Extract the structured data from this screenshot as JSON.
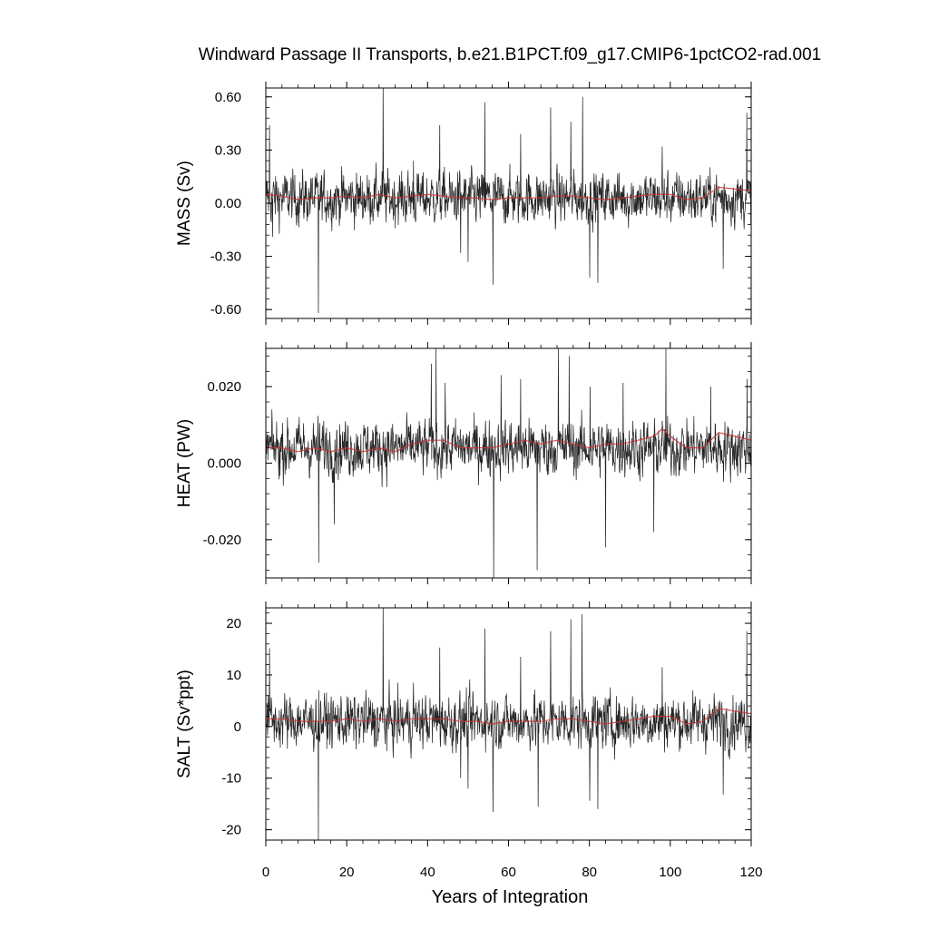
{
  "figure": {
    "title": "Windward Passage II Transports, b.e21.B1PCT.f09_g17.CMIP6-1pctCO2-rad.001",
    "xlabel": "Years of Integration"
  },
  "chart_data": [
    {
      "type": "line",
      "panel": "top",
      "ylabel": "MASS (Sv)",
      "xlim": [
        0,
        120
      ],
      "ylim": [
        -0.65,
        0.65
      ],
      "x_ticks": [
        0,
        20,
        40,
        60,
        80,
        100,
        120
      ],
      "y_ticks": [
        -0.6,
        -0.3,
        0.0,
        0.3,
        0.6
      ],
      "y_tick_labels": [
        "-0.60",
        "-0.30",
        "0.00",
        "0.30",
        "0.60"
      ],
      "series": [
        {
          "role": "monthly",
          "color": "#000000",
          "baseline": 0.03,
          "noise_amplitude": 0.09,
          "spikes": [
            [
              0.9,
              0.44
            ],
            [
              1.7,
              -0.19
            ],
            [
              13,
              -0.62
            ],
            [
              29,
              0.65
            ],
            [
              36.5,
              0.24
            ],
            [
              43,
              0.44
            ],
            [
              48.2,
              -0.28
            ],
            [
              54.2,
              0.57
            ],
            [
              56.2,
              -0.46
            ],
            [
              63,
              0.39
            ],
            [
              70.4,
              0.54
            ],
            [
              78.3,
              0.6
            ],
            [
              80.1,
              -0.42
            ],
            [
              82.1,
              -0.45
            ],
            [
              98,
              0.32
            ],
            [
              113.1,
              -0.37
            ],
            [
              118.9,
              0.51
            ],
            [
              75.4,
              0.46
            ],
            [
              50,
              -0.33
            ]
          ]
        },
        {
          "role": "annual-mean",
          "color": "#cc3333",
          "points": [
            [
              0,
              0.05
            ],
            [
              4,
              0.04
            ],
            [
              8,
              0.02
            ],
            [
              12,
              0.03
            ],
            [
              16,
              0.03
            ],
            [
              20,
              0.04
            ],
            [
              24,
              0.03
            ],
            [
              28,
              0.05
            ],
            [
              32,
              0.03
            ],
            [
              36,
              0.04
            ],
            [
              40,
              0.05
            ],
            [
              44,
              0.04
            ],
            [
              48,
              0.03
            ],
            [
              52,
              0.03
            ],
            [
              56,
              0.02
            ],
            [
              60,
              0.03
            ],
            [
              64,
              0.03
            ],
            [
              68,
              0.03
            ],
            [
              72,
              0.04
            ],
            [
              76,
              0.04
            ],
            [
              80,
              0.03
            ],
            [
              84,
              0.02
            ],
            [
              88,
              0.03
            ],
            [
              92,
              0.04
            ],
            [
              96,
              0.05
            ],
            [
              100,
              0.05
            ],
            [
              104,
              0.02
            ],
            [
              108,
              0.03
            ],
            [
              112,
              0.09
            ],
            [
              116,
              0.08
            ],
            [
              120,
              0.07
            ]
          ]
        }
      ]
    },
    {
      "type": "line",
      "panel": "middle",
      "ylabel": "HEAT (PW)",
      "xlim": [
        0,
        120
      ],
      "ylim": [
        -0.03,
        0.03
      ],
      "x_ticks": [
        0,
        20,
        40,
        60,
        80,
        100,
        120
      ],
      "y_ticks": [
        -0.02,
        0.0,
        0.02
      ],
      "y_tick_labels": [
        "-0.020",
        "0.000",
        "0.020"
      ],
      "series": [
        {
          "role": "monthly",
          "color": "#000000",
          "baseline": 0.004,
          "noise_amplitude": 0.0045,
          "spikes": [
            [
              13.1,
              0.03
            ],
            [
              13.1,
              -0.026
            ],
            [
              16.9,
              -0.016
            ],
            [
              42.1,
              0.03
            ],
            [
              44.3,
              0.021
            ],
            [
              56.3,
              -0.03
            ],
            [
              58.2,
              0.023
            ],
            [
              63,
              0.022
            ],
            [
              67.1,
              -0.028
            ],
            [
              72.3,
              0.03
            ],
            [
              75,
              0.028
            ],
            [
              80.2,
              0.02
            ],
            [
              84,
              -0.022
            ],
            [
              88.3,
              0.021
            ],
            [
              95.9,
              -0.018
            ],
            [
              98.9,
              0.03
            ],
            [
              110,
              0.02
            ],
            [
              119,
              0.022
            ],
            [
              120,
              0.016
            ],
            [
              40.9,
              0.026
            ]
          ]
        },
        {
          "role": "annual-mean",
          "color": "#cc3333",
          "points": [
            [
              0,
              0.004
            ],
            [
              4,
              0.004
            ],
            [
              8,
              0.003
            ],
            [
              12,
              0.004
            ],
            [
              16,
              0.003
            ],
            [
              20,
              0.004
            ],
            [
              24,
              0.003
            ],
            [
              28,
              0.004
            ],
            [
              32,
              0.003
            ],
            [
              36,
              0.005
            ],
            [
              40,
              0.006
            ],
            [
              44,
              0.006
            ],
            [
              48,
              0.004
            ],
            [
              52,
              0.004
            ],
            [
              56,
              0.004
            ],
            [
              60,
              0.005
            ],
            [
              64,
              0.006
            ],
            [
              68,
              0.005
            ],
            [
              72,
              0.006
            ],
            [
              76,
              0.005
            ],
            [
              80,
              0.004
            ],
            [
              84,
              0.005
            ],
            [
              88,
              0.005
            ],
            [
              92,
              0.006
            ],
            [
              96,
              0.007
            ],
            [
              98,
              0.009
            ],
            [
              100,
              0.007
            ],
            [
              104,
              0.004
            ],
            [
              108,
              0.004
            ],
            [
              112,
              0.008
            ],
            [
              116,
              0.007
            ],
            [
              120,
              0.006
            ]
          ]
        }
      ]
    },
    {
      "type": "line",
      "panel": "bottom",
      "ylabel": "SALT (Sv*ppt)",
      "xlim": [
        0,
        120
      ],
      "ylim": [
        -22,
        23
      ],
      "x_ticks": [
        0,
        20,
        40,
        60,
        80,
        100,
        120
      ],
      "y_ticks": [
        -20,
        -10,
        0,
        10,
        20
      ],
      "y_tick_labels": [
        "-20",
        "-10",
        "0",
        "10",
        "20"
      ],
      "series": [
        {
          "role": "monthly",
          "color": "#000000",
          "baseline": 1.0,
          "noise_amplitude": 3.2,
          "spikes": [
            [
              0.9,
              15.2
            ],
            [
              13,
              -22
            ],
            [
              29,
              23
            ],
            [
              36.5,
              8.5
            ],
            [
              43,
              15.3
            ],
            [
              54.2,
              19
            ],
            [
              56.2,
              -16.6
            ],
            [
              63,
              13.5
            ],
            [
              67.3,
              -15.5
            ],
            [
              70.4,
              18.5
            ],
            [
              75.4,
              20.8
            ],
            [
              78.2,
              21.8
            ],
            [
              80.1,
              -14.4
            ],
            [
              82.1,
              -16
            ],
            [
              98,
              11.5
            ],
            [
              113.1,
              -13.2
            ],
            [
              118.9,
              18.5
            ],
            [
              48.2,
              -10
            ],
            [
              50,
              -12
            ]
          ]
        },
        {
          "role": "annual-mean",
          "color": "#cc3333",
          "points": [
            [
              0,
              1.5
            ],
            [
              4,
              1.5
            ],
            [
              8,
              1.0
            ],
            [
              12,
              1.0
            ],
            [
              16,
              1.0
            ],
            [
              20,
              1.5
            ],
            [
              24,
              1.0
            ],
            [
              28,
              1.5
            ],
            [
              32,
              1.0
            ],
            [
              36,
              1.5
            ],
            [
              40,
              1.5
            ],
            [
              44,
              1.5
            ],
            [
              48,
              1.0
            ],
            [
              52,
              1.0
            ],
            [
              56,
              0.5
            ],
            [
              60,
              1.0
            ],
            [
              64,
              1.0
            ],
            [
              68,
              1.0
            ],
            [
              72,
              1.5
            ],
            [
              76,
              1.5
            ],
            [
              80,
              1.0
            ],
            [
              84,
              0.5
            ],
            [
              88,
              1.0
            ],
            [
              92,
              1.5
            ],
            [
              96,
              2.0
            ],
            [
              100,
              2.0
            ],
            [
              104,
              0.5
            ],
            [
              108,
              1.0
            ],
            [
              112,
              3.5
            ],
            [
              116,
              3.0
            ],
            [
              120,
              2.5
            ]
          ]
        }
      ]
    }
  ]
}
